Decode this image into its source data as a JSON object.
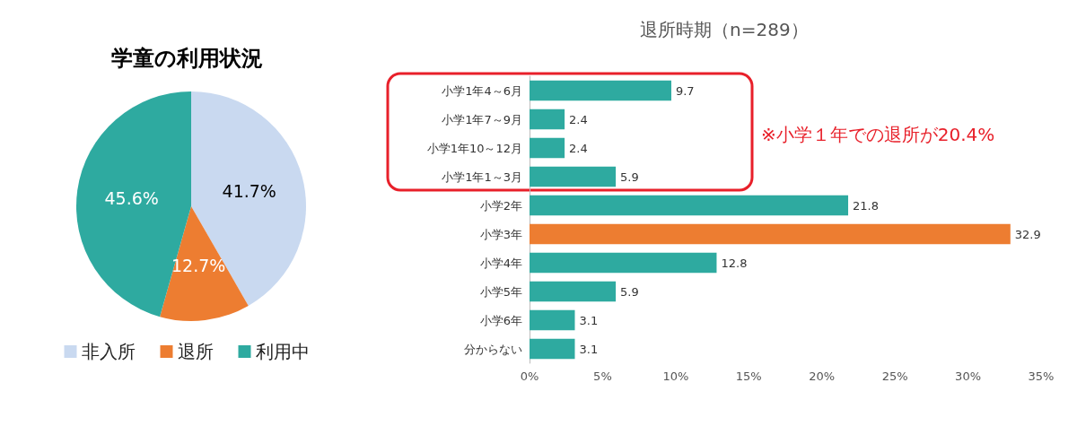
{
  "chart_data": [
    {
      "type": "pie",
      "title": "学童の利用状況",
      "categories": [
        "非入所",
        "退所",
        "利用中"
      ],
      "values": [
        41.7,
        12.7,
        45.6
      ],
      "colors": [
        "#c9d9f0",
        "#ed7d31",
        "#2eaaa0"
      ],
      "value_labels": [
        "41.7%",
        "12.7%",
        "45.6%"
      ],
      "legend": "bottom"
    },
    {
      "type": "bar",
      "orientation": "horizontal",
      "title": "退所時期（n=289）",
      "categories": [
        "小学1年4～6月",
        "小学1年7～9月",
        "小学1年10～12月",
        "小学1年1～3月",
        "小学2年",
        "小学3年",
        "小学4年",
        "小学5年",
        "小学6年",
        "分からない"
      ],
      "values": [
        9.7,
        2.4,
        2.4,
        5.9,
        21.8,
        32.9,
        12.8,
        5.9,
        3.1,
        3.1
      ],
      "colors": [
        "#2eaaa0",
        "#2eaaa0",
        "#2eaaa0",
        "#2eaaa0",
        "#2eaaa0",
        "#ed7d31",
        "#2eaaa0",
        "#2eaaa0",
        "#2eaaa0",
        "#2eaaa0"
      ],
      "data_labels": true,
      "xlim": [
        0,
        35
      ],
      "xticks": [
        {
          "value": 0,
          "label": "0%"
        },
        {
          "value": 5,
          "label": "5%"
        },
        {
          "value": 10,
          "label": "10%"
        },
        {
          "value": 15,
          "label": "15%"
        },
        {
          "value": 20,
          "label": "20%"
        },
        {
          "value": 25,
          "label": "25%"
        },
        {
          "value": 30,
          "label": "30%"
        },
        {
          "value": 35,
          "label": "35%"
        }
      ],
      "grid": false,
      "annotations": [
        "※小学１年での退所が20.4%"
      ]
    }
  ]
}
